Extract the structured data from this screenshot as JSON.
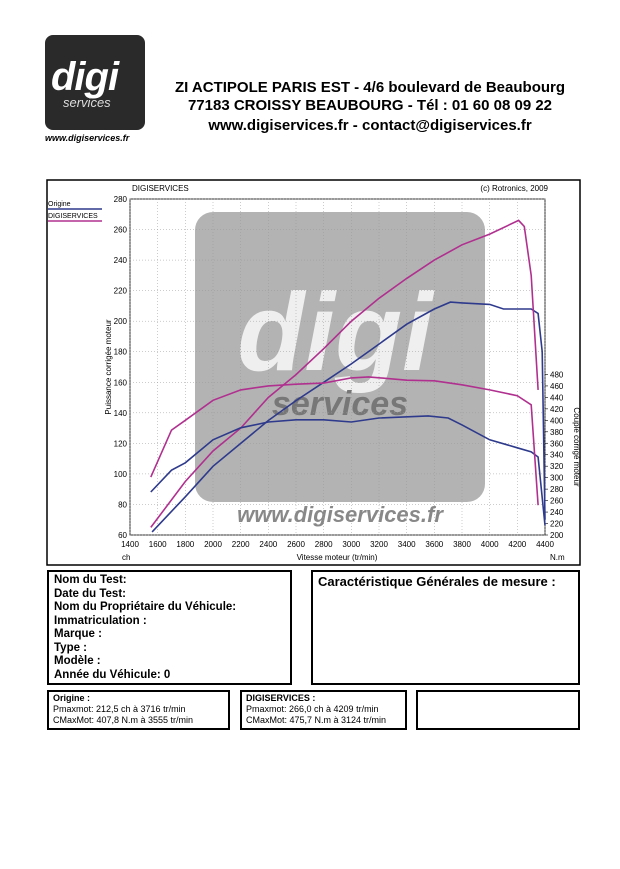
{
  "logo": {
    "word": "digi",
    "sub": "services",
    "url": "www.digiservices.fr"
  },
  "header": {
    "line1": "ZI ACTIPOLE PARIS EST - 4/6 boulevard de Beaubourg",
    "line2": "77183 CROISSY BEAUBOURG - Tél : 01 60 08 09 22",
    "line3": "www.digiservices.fr - contact@digiservices.fr"
  },
  "chart_data": {
    "type": "line",
    "title": "DIGISERVICES",
    "subtitle": "(c) Rotronics, 2009",
    "watermark": {
      "word": "digi",
      "sub": "services",
      "url": "www.digiservices.fr"
    },
    "xlabel": "Vitesse moteur (tr/min)",
    "ylabel": "Puissance corrigée moteur",
    "y2label": "Couple corrigé moteur",
    "yunit": "ch",
    "y2unit": "N.m",
    "xlim": [
      1400,
      4400
    ],
    "xticks": [
      1400,
      1600,
      1800,
      2000,
      2200,
      2400,
      2600,
      2800,
      3000,
      3200,
      3400,
      3600,
      3800,
      4000,
      4200,
      4400
    ],
    "ylim": [
      60,
      280
    ],
    "yticks": [
      60,
      80,
      100,
      120,
      140,
      160,
      180,
      200,
      220,
      240,
      260,
      280
    ],
    "y2lim": [
      200,
      786
    ],
    "y2ticks": [
      200,
      220,
      240,
      260,
      280,
      300,
      320,
      340,
      360,
      380,
      400,
      420,
      440,
      460,
      480
    ],
    "grid": true,
    "legend": [
      {
        "name": "Origine",
        "color": "#2e3a8c"
      },
      {
        "name": "DIGISERVICES",
        "color": "#b0308f"
      }
    ],
    "series": [
      {
        "color": "#2e3a8c",
        "axis": "y",
        "x": [
          1560,
          1800,
          2000,
          2200,
          2400,
          2600,
          2800,
          3000,
          3200,
          3400,
          3600,
          3716,
          3800,
          4000,
          4100,
          4300,
          4350,
          4380,
          4400
        ],
        "values": [
          62,
          85,
          105,
          120,
          135,
          148,
          160,
          172,
          185,
          198,
          208,
          212.5,
          212,
          211,
          208,
          208,
          205,
          180,
          70
        ]
      },
      {
        "color": "#b0308f",
        "axis": "y",
        "x": [
          1550,
          1800,
          2000,
          2200,
          2400,
          2600,
          2800,
          3000,
          3200,
          3400,
          3600,
          3800,
          4000,
          4209,
          4250,
          4300,
          4350
        ],
        "values": [
          65,
          95,
          115,
          130,
          150,
          165,
          182,
          200,
          215,
          228,
          240,
          250,
          257,
          266,
          262,
          230,
          155
        ]
      },
      {
        "color": "#2e3a8c",
        "axis": "y2",
        "x": [
          1550,
          1700,
          1800,
          2000,
          2200,
          2400,
          2600,
          2800,
          3000,
          3200,
          3555,
          3700,
          3800,
          4000,
          4200,
          4300,
          4350,
          4400
        ],
        "values": [
          275,
          313,
          326,
          366,
          387,
          397,
          401,
          401,
          397,
          404,
          407.8,
          404,
          392,
          366,
          352,
          345,
          336,
          217
        ]
      },
      {
        "color": "#b0308f",
        "axis": "y2",
        "x": [
          1550,
          1700,
          1800,
          2000,
          2200,
          2400,
          2600,
          2800,
          3000,
          3124,
          3400,
          3600,
          3800,
          4000,
          4200,
          4300,
          4350
        ],
        "values": [
          301,
          383,
          400,
          435,
          453,
          460,
          463,
          465,
          474,
          475.7,
          470,
          469,
          462,
          453,
          443,
          427,
          252
        ]
      }
    ]
  },
  "test": {
    "lines": [
      "Nom du Test:",
      "Date du Test:",
      "Nom du Propriétaire du Véhicule:",
      "Immatriculation  :",
      "Marque  :",
      "Type  :",
      "Modèle  :",
      "Année du Véhicule: 0"
    ],
    "right_title": "Caractéristique Générales de mesure :"
  },
  "results": [
    {
      "title": "Origine :",
      "lines": [
        "Pmaxmot: 212,5 ch à 3716 tr/min",
        "CMaxMot: 407,8 N.m à 3555 tr/min"
      ]
    },
    {
      "title": "DIGISERVICES :",
      "lines": [
        "Pmaxmot: 266,0 ch à 4209 tr/min",
        "CMaxMot: 475,7 N.m à 3124 tr/min"
      ]
    }
  ]
}
